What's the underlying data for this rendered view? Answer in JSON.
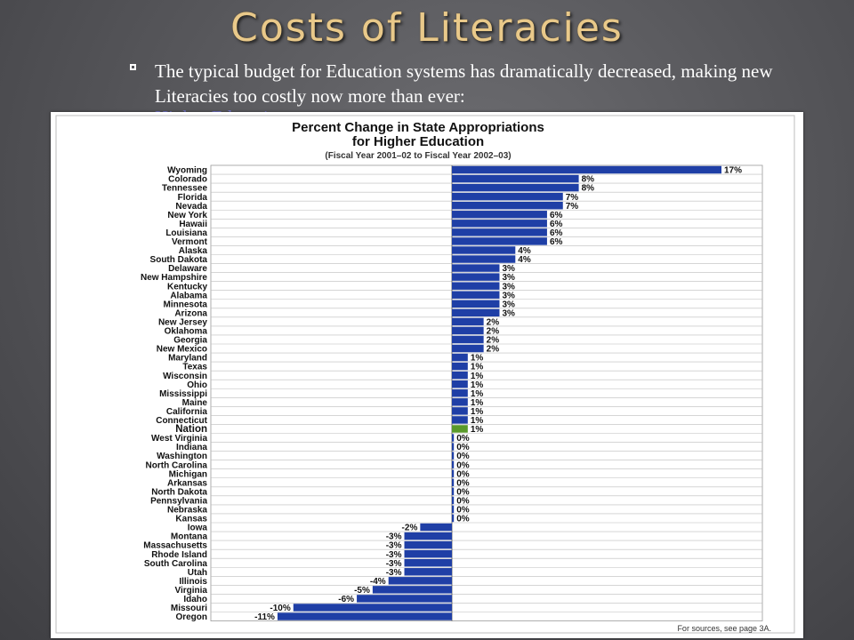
{
  "slide": {
    "title": "Costs of Literacies",
    "bullet": "The typical budget for Education systems has dramatically decreased, making new Literacies too costly now more than ever:",
    "link": "Higher Education"
  },
  "colors": {
    "bar": "#1f3fa6",
    "nation_bar": "#5a9a2a",
    "title_gold": "#e9c98a"
  },
  "chart_data": {
    "type": "bar",
    "orientation": "horizontal",
    "title": "Percent Change in State Appropriations",
    "title_line2": "for Higher Education",
    "subtitle": "(Fiscal Year 2001–02 to Fiscal Year 2002–03)",
    "source_note": "For sources, see page 3A.",
    "unit": "%",
    "categories": [
      "Wyoming",
      "Colorado",
      "Tennessee",
      "Florida",
      "Nevada",
      "New York",
      "Hawaii",
      "Louisiana",
      "Vermont",
      "Alaska",
      "South Dakota",
      "Delaware",
      "New Hampshire",
      "Kentucky",
      "Alabama",
      "Minnesota",
      "Arizona",
      "New Jersey",
      "Oklahoma",
      "Georgia",
      "New Mexico",
      "Maryland",
      "Texas",
      "Wisconsin",
      "Ohio",
      "Mississippi",
      "Maine",
      "California",
      "Connecticut",
      "Nation",
      "West Virginia",
      "Indiana",
      "Washington",
      "North Carolina",
      "Michigan",
      "Arkansas",
      "North Dakota",
      "Pennsylvania",
      "Nebraska",
      "Kansas",
      "Iowa",
      "Montana",
      "Massachusetts",
      "Rhode Island",
      "South Carolina",
      "Utah",
      "Illinois",
      "Virginia",
      "Idaho",
      "Missouri",
      "Oregon"
    ],
    "values": [
      17,
      8,
      8,
      7,
      7,
      6,
      6,
      6,
      6,
      4,
      4,
      3,
      3,
      3,
      3,
      3,
      3,
      2,
      2,
      2,
      2,
      1,
      1,
      1,
      1,
      1,
      1,
      1,
      1,
      1,
      0,
      0,
      0,
      0,
      0,
      0,
      0,
      0,
      0,
      0,
      -2,
      -3,
      -3,
      -3,
      -3,
      -3,
      -4,
      -5,
      -6,
      -10,
      -11
    ],
    "labels": [
      "17%",
      "8%",
      "8%",
      "7%",
      "7%",
      "6%",
      "6%",
      "6%",
      "6%",
      "4%",
      "4%",
      "3%",
      "3%",
      "3%",
      "3%",
      "3%",
      "3%",
      "2%",
      "2%",
      "2%",
      "2%",
      "1%",
      "1%",
      "1%",
      "1%",
      "1%",
      "1%",
      "1%",
      "1%",
      "1%",
      "0%",
      "0%",
      "0%",
      "0%",
      "0%",
      "0%",
      "0%",
      "0%",
      "0%",
      "0%",
      "-2%",
      "-3%",
      "-3%",
      "-3%",
      "-3%",
      "-3%",
      "-4%",
      "-5%",
      "-6%",
      "-10%",
      "-11%"
    ],
    "highlight": "Nation",
    "xlim": [
      -11,
      17
    ],
    "grid": true,
    "legend": "none"
  }
}
